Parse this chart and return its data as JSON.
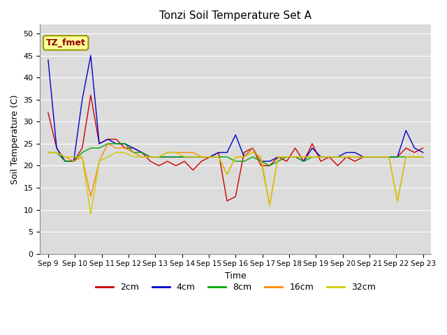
{
  "title": "Tonzi Soil Temperature Set A",
  "xlabel": "Time",
  "ylabel": "Soil Temperature (C)",
  "ylim": [
    0,
    52
  ],
  "x_tick_labels": [
    "Sep 9",
    "Sep 10",
    "Sep 11",
    "Sep 12",
    "Sep 13",
    "Sep 14",
    "Sep 15",
    "Sep 16",
    "Sep 17",
    "Sep 18",
    "Sep 19",
    "Sep 20",
    "Sep 21",
    "Sep 22",
    "Sep 23"
  ],
  "annotation_text": "TZ_fmet",
  "annotation_color": "#8B0000",
  "annotation_bg": "#FFFF99",
  "annotation_edge": "#999900",
  "series_order": [
    "2cm",
    "4cm",
    "8cm",
    "16cm",
    "32cm"
  ],
  "series": {
    "2cm": {
      "color": "#CC0000",
      "values": [
        32,
        24,
        21,
        21,
        24,
        36,
        25,
        26,
        26,
        24,
        24,
        23,
        21,
        20,
        21,
        20,
        21,
        19,
        21,
        22,
        23,
        12,
        13,
        23,
        24,
        20,
        20,
        22,
        21,
        24,
        21,
        25,
        21,
        22,
        20,
        22,
        21,
        22,
        22,
        22,
        22,
        22,
        24,
        23,
        24
      ]
    },
    "4cm": {
      "color": "#0000CC",
      "values": [
        44,
        24,
        21,
        21,
        35,
        45,
        25,
        26,
        25,
        25,
        24,
        23,
        22,
        22,
        22,
        22,
        22,
        22,
        22,
        22,
        23,
        23,
        27,
        22,
        24,
        21,
        21,
        22,
        22,
        22,
        21,
        24,
        22,
        22,
        22,
        23,
        23,
        22,
        22,
        22,
        22,
        22,
        28,
        24,
        23
      ]
    },
    "8cm": {
      "color": "#00AA00",
      "values": [
        23,
        23,
        21,
        21,
        23,
        24,
        24,
        25,
        25,
        25,
        23,
        23,
        22,
        22,
        22,
        22,
        22,
        22,
        22,
        22,
        22,
        22,
        21,
        21,
        22,
        21,
        20,
        21,
        22,
        22,
        21,
        22,
        22,
        22,
        22,
        22,
        22,
        22,
        22,
        22,
        22,
        22,
        22,
        22,
        22
      ]
    },
    "16cm": {
      "color": "#FF8800",
      "values": [
        23,
        23,
        22,
        21,
        22,
        13,
        21,
        25,
        24,
        24,
        23,
        22,
        22,
        22,
        23,
        23,
        23,
        23,
        22,
        22,
        22,
        18,
        22,
        22,
        24,
        21,
        11,
        22,
        22,
        22,
        22,
        22,
        22,
        22,
        22,
        22,
        22,
        22,
        22,
        22,
        22,
        12,
        22,
        22,
        22
      ]
    },
    "32cm": {
      "color": "#CCCC00",
      "values": [
        23,
        23,
        22,
        22,
        22,
        9,
        21,
        22,
        23,
        23,
        22,
        22,
        22,
        22,
        23,
        23,
        22,
        22,
        22,
        22,
        22,
        18,
        22,
        22,
        23,
        22,
        11,
        22,
        22,
        22,
        22,
        22,
        22,
        22,
        22,
        22,
        22,
        22,
        22,
        22,
        22,
        12,
        22,
        22,
        22
      ]
    }
  },
  "plot_bg": "#DCDCDC",
  "fig_bg": "#FFFFFF",
  "grid_color": "#FFFFFF",
  "yticks": [
    0,
    5,
    10,
    15,
    20,
    25,
    30,
    35,
    40,
    45,
    50
  ]
}
